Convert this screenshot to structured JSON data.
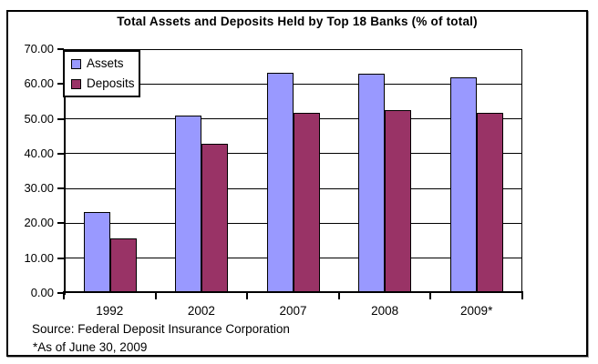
{
  "window": {
    "background_color": "#FFFFFF",
    "frame_border_color": "#000000",
    "frame_shadow_color": "#9E9E9E"
  },
  "chart_data": {
    "type": "bar",
    "title": "Total Assets and Deposits Held by Top 18 Banks (% of total)",
    "categories": [
      "1992",
      "2002",
      "2007",
      "2008",
      "2009*"
    ],
    "series": [
      {
        "name": "Assets",
        "color": "#9999FF",
        "border_color": "#000000",
        "values": [
          23.2,
          50.9,
          63.3,
          62.9,
          61.8
        ]
      },
      {
        "name": "Deposits",
        "color": "#993366",
        "border_color": "#000000",
        "values": [
          15.8,
          42.9,
          51.6,
          52.4,
          51.6
        ]
      }
    ],
    "xlabel": "",
    "ylabel": "",
    "ylim": [
      0,
      70
    ],
    "ytick_labels": [
      "70.00",
      "60.00",
      "50.00",
      "40.00",
      "30.00",
      "20.00",
      "10.00",
      "0.00"
    ],
    "grid": true,
    "gridline_color": "#000000",
    "plot_background": "#FFFFFF",
    "legend_position": "top-left-inside",
    "annotations": [
      "Source: Federal Deposit Insurance Corporation",
      "*As of June 30, 2009"
    ]
  }
}
